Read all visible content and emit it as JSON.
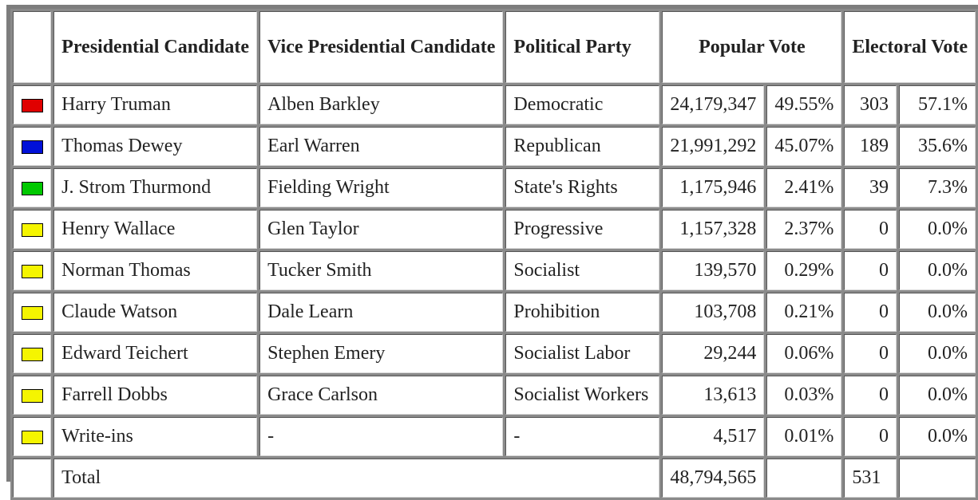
{
  "headers": {
    "presidential": "Presidential Candidate",
    "vice_presidential": "Vice Presidential Candidate",
    "party": "Political Party",
    "popular_vote": "Popular Vote",
    "electoral_vote": "Electoral Vote"
  },
  "rows": [
    {
      "color": "#e00000",
      "president": "Harry Truman",
      "vice": "Alben Barkley",
      "party": "Democratic",
      "popular": "24,179,347",
      "popular_pct": "49.55%",
      "electoral": "303",
      "electoral_pct": "57.1%"
    },
    {
      "color": "#0010d8",
      "president": "Thomas Dewey",
      "vice": "Earl Warren",
      "party": "Republican",
      "popular": "21,991,292",
      "popular_pct": "45.07%",
      "electoral": "189",
      "electoral_pct": "35.6%"
    },
    {
      "color": "#00c800",
      "president": "J. Strom Thurmond",
      "vice": "Fielding Wright",
      "party": "State's Rights",
      "popular": "1,175,946",
      "popular_pct": "2.41%",
      "electoral": "39",
      "electoral_pct": "7.3%"
    },
    {
      "color": "#f5f500",
      "president": "Henry Wallace",
      "vice": "Glen Taylor",
      "party": "Progressive",
      "popular": "1,157,328",
      "popular_pct": "2.37%",
      "electoral": "0",
      "electoral_pct": "0.0%"
    },
    {
      "color": "#f5f500",
      "president": "Norman Thomas",
      "vice": "Tucker Smith",
      "party": "Socialist",
      "popular": "139,570",
      "popular_pct": "0.29%",
      "electoral": "0",
      "electoral_pct": "0.0%"
    },
    {
      "color": "#f5f500",
      "president": "Claude Watson",
      "vice": "Dale Learn",
      "party": "Prohibition",
      "popular": "103,708",
      "popular_pct": "0.21%",
      "electoral": "0",
      "electoral_pct": "0.0%"
    },
    {
      "color": "#f5f500",
      "president": "Edward Teichert",
      "vice": "Stephen Emery",
      "party": "Socialist Labor",
      "popular": "29,244",
      "popular_pct": "0.06%",
      "electoral": "0",
      "electoral_pct": "0.0%"
    },
    {
      "color": "#f5f500",
      "president": "Farrell Dobbs",
      "vice": "Grace Carlson",
      "party": "Socialist Workers",
      "popular": "13,613",
      "popular_pct": "0.03%",
      "electoral": "0",
      "electoral_pct": "0.0%"
    },
    {
      "color": "#f5f500",
      "president": "Write-ins",
      "vice": "-",
      "party": "-",
      "popular": "4,517",
      "popular_pct": "0.01%",
      "electoral": "0",
      "electoral_pct": "0.0%"
    }
  ],
  "total": {
    "label": "Total",
    "popular": "48,794,565",
    "electoral": "531"
  }
}
